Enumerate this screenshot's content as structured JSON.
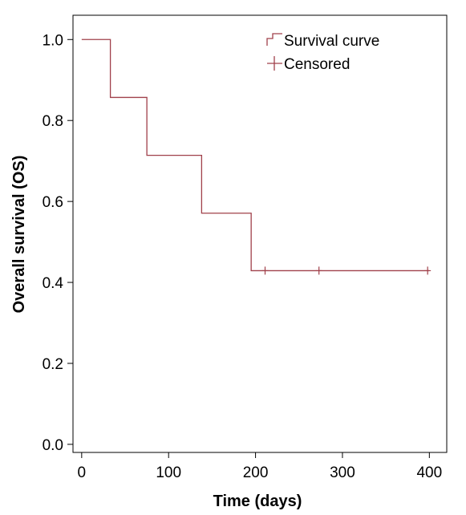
{
  "chart_data": {
    "type": "line",
    "xlabel": "Time (days)",
    "ylabel": "Overall survival  (OS)",
    "xlim": [
      -10,
      420
    ],
    "ylim": [
      -0.02,
      1.06
    ],
    "xticks": [
      0,
      100,
      200,
      300,
      400
    ],
    "xtick_labels": [
      "0",
      "100",
      "200",
      "300",
      "400"
    ],
    "yticks": [
      0.0,
      0.2,
      0.4,
      0.6,
      0.8,
      1.0
    ],
    "ytick_labels": [
      "0.0",
      "0.2",
      "0.4",
      "0.6",
      "0.8",
      "1.0"
    ],
    "grid": false,
    "legend_position": "top-right",
    "series": [
      {
        "name": "Survival curve",
        "kind": "step",
        "color": "#a0404a",
        "x": [
          0,
          33,
          75,
          138,
          195,
          400
        ],
        "y": [
          1.0,
          0.857,
          0.714,
          0.571,
          0.429,
          0.429
        ]
      },
      {
        "name": "Censored",
        "kind": "marker",
        "color": "#a0404a",
        "x": [
          211,
          273,
          398
        ],
        "y": [
          0.429,
          0.429,
          0.429
        ]
      }
    ]
  }
}
